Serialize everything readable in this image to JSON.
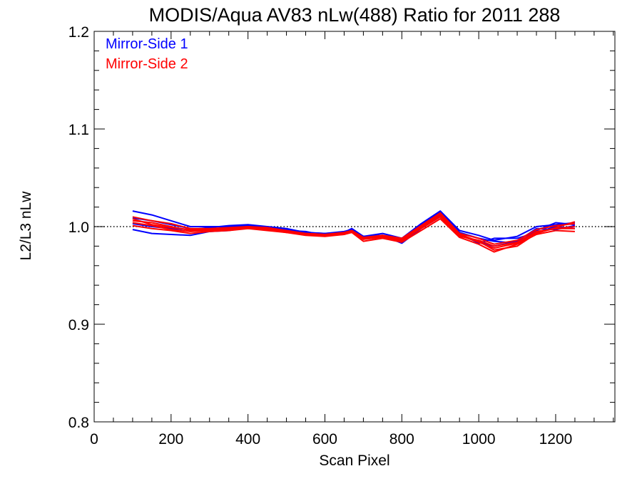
{
  "chart_data": {
    "type": "line",
    "title": "MODIS/Aqua AV83 nLw(488) Ratio for 2011 288",
    "xlabel": "Scan Pixel",
    "ylabel": "L2/L3 nLw",
    "xlim": [
      0,
      1354
    ],
    "ylim": [
      0.8,
      1.2
    ],
    "xticks": [
      0,
      200,
      400,
      600,
      800,
      1000,
      1200
    ],
    "xtick_labels": [
      "0",
      "200",
      "400",
      "600",
      "800",
      "1000",
      "1200"
    ],
    "yticks": [
      0.8,
      0.9,
      1.0,
      1.1,
      1.2
    ],
    "ytick_labels": [
      "0.8",
      "0.9",
      "1.0",
      "1.1",
      "1.2"
    ],
    "reference_line": {
      "y": 1.0,
      "style": "dotted"
    },
    "legend": {
      "position": "top-left",
      "entries": [
        "Mirror-Side 1",
        "Mirror-Side 2"
      ]
    },
    "grid": false,
    "x": [
      100,
      150,
      200,
      250,
      300,
      350,
      400,
      450,
      500,
      550,
      600,
      650,
      670,
      700,
      750,
      800,
      850,
      900,
      950,
      1000,
      1040,
      1100,
      1150,
      1200,
      1250
    ],
    "series": [
      {
        "name": "Mirror-Side 1",
        "color": "#0000ff",
        "values": [
          1.016,
          1.012,
          1.006,
          1.0,
          1.0,
          1.0,
          1.001,
          0.999,
          0.997,
          0.994,
          0.993,
          0.994,
          0.998,
          0.99,
          0.99,
          0.988,
          1.002,
          1.015,
          0.994,
          0.988,
          0.985,
          0.983,
          0.996,
          1.004,
          1.002
        ]
      },
      {
        "name": "Mirror-Side 1",
        "color": "#0000ff",
        "values": [
          1.009,
          1.006,
          1.002,
          0.998,
          0.997,
          0.998,
          1.0,
          0.998,
          0.995,
          0.993,
          0.992,
          0.993,
          0.995,
          0.988,
          0.99,
          0.985,
          1.0,
          1.012,
          0.992,
          0.984,
          0.98,
          0.985,
          0.998,
          0.997,
          1.001
        ]
      },
      {
        "name": "Mirror-Side 1",
        "color": "#0000ff",
        "values": [
          0.997,
          0.993,
          0.992,
          0.991,
          0.995,
          0.996,
          0.999,
          0.997,
          0.996,
          0.995,
          0.991,
          0.994,
          0.996,
          0.99,
          0.991,
          0.983,
          0.998,
          1.01,
          0.993,
          0.983,
          0.988,
          0.988,
          0.994,
          1.0,
          0.998
        ]
      },
      {
        "name": "Mirror-Side 1",
        "color": "#0000ff",
        "values": [
          1.003,
          1.0,
          0.998,
          0.997,
          0.999,
          1.001,
          1.002,
          1.0,
          0.998,
          0.994,
          0.993,
          0.995,
          0.997,
          0.99,
          0.993,
          0.988,
          1.003,
          1.016,
          0.996,
          0.991,
          0.986,
          0.99,
          1.0,
          1.002,
          1.004
        ]
      },
      {
        "name": "Mirror-Side 2",
        "color": "#ff0000",
        "values": [
          1.01,
          1.006,
          1.003,
          0.998,
          0.998,
          0.999,
          1.0,
          0.999,
          0.996,
          0.993,
          0.992,
          0.994,
          0.996,
          0.989,
          0.991,
          0.987,
          1.0,
          1.013,
          0.992,
          0.985,
          0.976,
          0.98,
          0.993,
          0.999,
          1.005
        ]
      },
      {
        "name": "Mirror-Side 2",
        "color": "#ff0000",
        "values": [
          1.006,
          1.004,
          1.0,
          0.996,
          0.996,
          0.997,
          0.999,
          0.997,
          0.995,
          0.992,
          0.991,
          0.993,
          0.995,
          0.987,
          0.99,
          0.986,
          0.998,
          1.01,
          0.99,
          0.986,
          0.98,
          0.984,
          0.995,
          0.998,
          1.0
        ]
      },
      {
        "name": "Mirror-Side 2",
        "color": "#ff0000",
        "values": [
          1.001,
          0.998,
          0.996,
          0.993,
          0.995,
          0.996,
          0.998,
          0.996,
          0.994,
          0.991,
          0.99,
          0.992,
          0.994,
          0.985,
          0.988,
          0.984,
          0.996,
          1.008,
          0.989,
          0.982,
          0.974,
          0.982,
          0.992,
          0.996,
          0.995
        ]
      },
      {
        "name": "Mirror-Side 2",
        "color": "#ff0000",
        "values": [
          1.008,
          1.002,
          0.999,
          0.997,
          0.997,
          0.998,
          1.0,
          0.998,
          0.995,
          0.993,
          0.992,
          0.993,
          0.996,
          0.988,
          0.991,
          0.988,
          1.001,
          1.014,
          0.993,
          0.988,
          0.982,
          0.986,
          0.997,
          1.001,
          1.003
        ]
      },
      {
        "name": "Mirror-Side 2",
        "color": "#ff0000",
        "values": [
          1.004,
          1.001,
          0.997,
          0.995,
          0.996,
          0.997,
          0.999,
          0.997,
          0.994,
          0.992,
          0.991,
          0.992,
          0.995,
          0.987,
          0.989,
          0.985,
          0.999,
          1.011,
          0.991,
          0.984,
          0.978,
          0.983,
          0.994,
          0.998,
          0.998
        ]
      }
    ]
  }
}
